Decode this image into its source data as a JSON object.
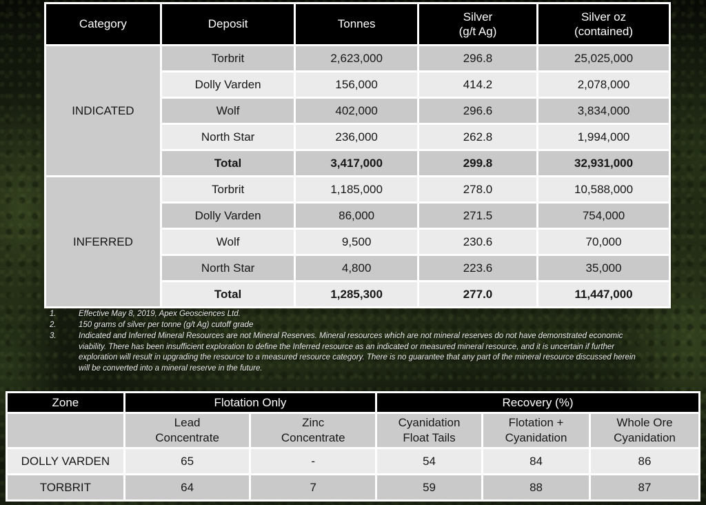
{
  "colors": {
    "page_bg": "#11160c",
    "table_grid": "#ffffff",
    "header_bg": "#000000",
    "header_text": "#ffffff",
    "row_dark": "#c9c9c9",
    "row_light": "#ebebeb",
    "category_cell_bg": "#cbcbcb",
    "body_text": "#161616",
    "footnote_text": "#ededed"
  },
  "resource_table": {
    "headers": [
      "Category",
      "Deposit",
      "Tonnes",
      "Silver\n(g/t Ag)",
      "Silver oz\n(contained)"
    ],
    "groups": [
      {
        "category": "INDICATED",
        "rows": [
          {
            "deposit": "Torbrit",
            "tonnes": "2,623,000",
            "silver": "296.8",
            "silver_oz": "25,025,000",
            "bold": false
          },
          {
            "deposit": "Dolly Varden",
            "tonnes": "156,000",
            "silver": "414.2",
            "silver_oz": "2,078,000",
            "bold": false
          },
          {
            "deposit": "Wolf",
            "tonnes": "402,000",
            "silver": "296.6",
            "silver_oz": "3,834,000",
            "bold": false
          },
          {
            "deposit": "North Star",
            "tonnes": "236,000",
            "silver": "262.8",
            "silver_oz": "1,994,000",
            "bold": false
          },
          {
            "deposit": "Total",
            "tonnes": "3,417,000",
            "silver": "299.8",
            "silver_oz": "32,931,000",
            "bold": true
          }
        ]
      },
      {
        "category": "INFERRED",
        "rows": [
          {
            "deposit": "Torbrit",
            "tonnes": "1,185,000",
            "silver": "278.0",
            "silver_oz": "10,588,000",
            "bold": false
          },
          {
            "deposit": "Dolly Varden",
            "tonnes": "86,000",
            "silver": "271.5",
            "silver_oz": "754,000",
            "bold": false
          },
          {
            "deposit": "Wolf",
            "tonnes": "9,500",
            "silver": "230.6",
            "silver_oz": "70,000",
            "bold": false
          },
          {
            "deposit": "North Star",
            "tonnes": "4,800",
            "silver": "223.6",
            "silver_oz": "35,000",
            "bold": false
          },
          {
            "deposit": "Total",
            "tonnes": "1,285,300",
            "silver": "277.0",
            "silver_oz": "11,447,000",
            "bold": true
          }
        ]
      }
    ]
  },
  "footnotes": [
    {
      "num": "1.",
      "text": "Effective May 8, 2019, Apex Geosciences Ltd."
    },
    {
      "num": "2.",
      "text": "150 grams of silver per tonne (g/t Ag) cutoff grade"
    },
    {
      "num": "3.",
      "text": "Indicated and Inferred Mineral Resources are not Mineral Reserves. Mineral resources which are not mineral reserves do not have demonstrated economic viability. There has been insufficient exploration to define the Inferred resource as an indicated or measured mineral resource, and it is uncertain if further exploration will result in upgrading the resource to a measured resource category. There is no guarantee that any part of the mineral resource discussed herein will be converted into a mineral reserve in the future."
    }
  ],
  "recovery_table": {
    "top_headers": [
      {
        "label": "Zone",
        "span": 1
      },
      {
        "label": "Flotation Only",
        "span": 2
      },
      {
        "label": "Recovery (%)",
        "span": 3
      }
    ],
    "sub_headers": [
      "",
      "Lead\nConcentrate",
      "Zinc\nConcentrate",
      "Cyanidation\nFloat Tails",
      "Flotation +\nCyanidation",
      "Whole Ore\nCyanidation"
    ],
    "rows": [
      {
        "zone": "DOLLY VARDEN",
        "values": [
          "65",
          "-",
          "54",
          "84",
          "86"
        ]
      },
      {
        "zone": "TORBRIT",
        "values": [
          "64",
          "7",
          "59",
          "88",
          "87"
        ]
      }
    ]
  }
}
